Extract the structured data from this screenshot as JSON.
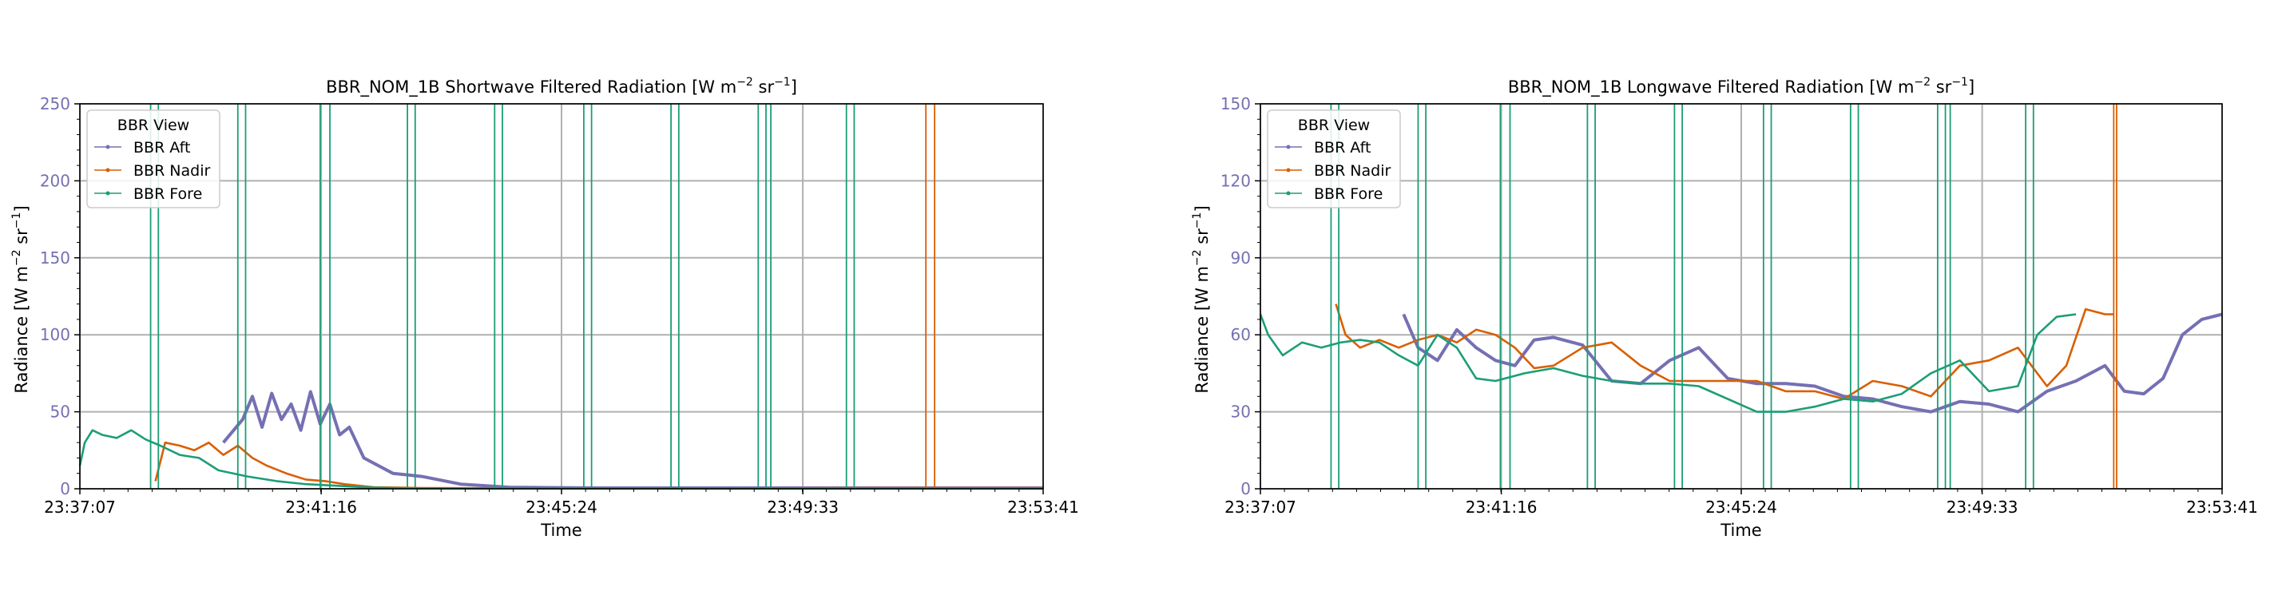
{
  "colors": {
    "aft": "#7570b3",
    "nadir": "#d95f02",
    "fore": "#1b9e77",
    "grid": "#b0b0b0",
    "ytick": "#7570b3"
  },
  "legend": {
    "title": "BBR View",
    "entries": [
      "BBR Aft",
      "BBR Nadir",
      "BBR Fore"
    ]
  },
  "chart_data": [
    {
      "type": "line",
      "title_main": "BBR_NOM_1B Shortwave Filtered Radiation [W m",
      "title_sup1": "−2",
      "title_mid": " sr",
      "title_sup2": "−1",
      "title_end": "]",
      "xlabel": "Time",
      "ylabel_main": "Radiance [W m",
      "ylabel_sup1": "−2",
      "ylabel_mid": " sr",
      "ylabel_sup2": "−1",
      "ylabel_end": "]",
      "x_range": [
        "23:37:07",
        "23:53:41"
      ],
      "x_ticks": [
        "23:37:07",
        "23:41:16",
        "23:45:24",
        "23:49:33",
        "23:53:41"
      ],
      "ylim": [
        0,
        250
      ],
      "y_ticks": [
        0,
        50,
        100,
        150,
        200,
        250
      ],
      "grid": true,
      "legend_position": "top-left",
      "series": [
        {
          "key": "aft",
          "name": "BBR Aft",
          "x": [
            "23:39:35",
            "23:39:55",
            "23:40:05",
            "23:40:15",
            "23:40:25",
            "23:40:35",
            "23:40:45",
            "23:40:55",
            "23:41:05",
            "23:41:15",
            "23:41:25",
            "23:41:35",
            "23:41:45",
            "23:42:00",
            "23:42:30",
            "23:43:00",
            "23:43:40",
            "23:44:30",
            "23:46:00",
            "23:48:00",
            "23:50:00",
            "23:52:00",
            "23:53:41"
          ],
          "y": [
            30,
            45,
            60,
            40,
            62,
            45,
            55,
            38,
            63,
            42,
            55,
            35,
            40,
            20,
            10,
            8,
            3,
            1,
            0.5,
            0.5,
            0.5,
            0.5,
            0.5
          ]
        },
        {
          "key": "nadir",
          "name": "BBR Nadir",
          "x": [
            "23:38:25",
            "23:38:35",
            "23:38:50",
            "23:39:05",
            "23:39:20",
            "23:39:35",
            "23:39:50",
            "23:40:05",
            "23:40:20",
            "23:40:40",
            "23:41:00",
            "23:41:20",
            "23:41:40",
            "23:42:10",
            "23:43:00",
            "23:45:00",
            "23:48:00",
            "23:51:00",
            "23:53:41"
          ],
          "y": [
            5,
            30,
            28,
            25,
            30,
            22,
            28,
            20,
            15,
            10,
            6,
            5,
            3,
            1,
            0.5,
            0.3,
            0.3,
            0.5,
            0.5
          ],
          "spikes": [
            "23:51:40",
            "23:51:49"
          ]
        },
        {
          "key": "fore",
          "name": "BBR Fore",
          "x": [
            "23:37:07",
            "23:37:12",
            "23:37:20",
            "23:37:30",
            "23:37:45",
            "23:38:00",
            "23:38:15",
            "23:38:30",
            "23:38:50",
            "23:39:10",
            "23:39:30",
            "23:40:00",
            "23:40:30",
            "23:41:00",
            "23:41:30",
            "23:42:00",
            "23:42:30",
            "23:43:00",
            "23:45:00",
            "23:48:00",
            "23:53:41"
          ],
          "y": [
            15,
            30,
            38,
            35,
            33,
            38,
            32,
            28,
            22,
            20,
            12,
            8,
            5,
            3,
            2,
            1,
            0.5,
            0.3,
            0.2,
            0.2,
            0.2
          ],
          "spikes": [
            "23:38:20",
            "23:38:28",
            "23:39:50",
            "23:39:58",
            "23:41:15",
            "23:41:25",
            "23:42:45",
            "23:42:53",
            "23:44:15",
            "23:44:23",
            "23:45:47",
            "23:45:55",
            "23:47:17",
            "23:47:25",
            "23:48:47",
            "23:48:55",
            "23:49:00",
            "23:50:18",
            "23:50:26"
          ]
        }
      ]
    },
    {
      "type": "line",
      "title_main": "BBR_NOM_1B Longwave Filtered Radiation [W m",
      "title_sup1": "−2",
      "title_mid": " sr",
      "title_sup2": "−1",
      "title_end": "]",
      "xlabel": "Time",
      "ylabel_main": "Radiance [W m",
      "ylabel_sup1": "−2",
      "ylabel_mid": " sr",
      "ylabel_sup2": "−1",
      "ylabel_end": "]",
      "x_range": [
        "23:37:07",
        "23:53:41"
      ],
      "x_ticks": [
        "23:37:07",
        "23:41:16",
        "23:45:24",
        "23:49:33",
        "23:53:41"
      ],
      "ylim": [
        0,
        150
      ],
      "y_ticks": [
        0,
        30,
        60,
        90,
        120,
        150
      ],
      "grid": true,
      "legend_position": "top-left",
      "series": [
        {
          "key": "aft",
          "name": "BBR Aft",
          "x": [
            "23:39:35",
            "23:39:50",
            "23:40:10",
            "23:40:30",
            "23:40:50",
            "23:41:10",
            "23:41:30",
            "23:41:50",
            "23:42:10",
            "23:42:40",
            "23:43:10",
            "23:43:40",
            "23:44:10",
            "23:44:40",
            "23:45:10",
            "23:45:40",
            "23:46:10",
            "23:46:40",
            "23:47:10",
            "23:47:40",
            "23:48:10",
            "23:48:40",
            "23:49:10",
            "23:49:40",
            "23:50:10",
            "23:50:40",
            "23:51:10",
            "23:51:40",
            "23:52:00",
            "23:52:20",
            "23:52:40",
            "23:53:00",
            "23:53:20",
            "23:53:41"
          ],
          "y": [
            68,
            55,
            50,
            62,
            55,
            50,
            48,
            58,
            59,
            56,
            42,
            41,
            50,
            55,
            43,
            41,
            41,
            40,
            36,
            35,
            32,
            30,
            34,
            33,
            30,
            38,
            42,
            48,
            38,
            37,
            43,
            60,
            66,
            68
          ]
        },
        {
          "key": "nadir",
          "name": "BBR Nadir",
          "x": [
            "23:38:25",
            "23:38:35",
            "23:38:50",
            "23:39:10",
            "23:39:30",
            "23:39:50",
            "23:40:10",
            "23:40:30",
            "23:40:50",
            "23:41:10",
            "23:41:30",
            "23:41:50",
            "23:42:10",
            "23:42:40",
            "23:43:10",
            "23:43:40",
            "23:44:10",
            "23:44:40",
            "23:45:10",
            "23:45:40",
            "23:46:10",
            "23:46:40",
            "23:47:10",
            "23:47:40",
            "23:48:10",
            "23:48:40",
            "23:49:10",
            "23:49:40",
            "23:50:10",
            "23:50:40",
            "23:51:00",
            "23:51:20",
            "23:51:40",
            "23:51:49"
          ],
          "y": [
            72,
            60,
            55,
            58,
            55,
            58,
            60,
            57,
            62,
            60,
            55,
            47,
            48,
            55,
            57,
            48,
            42,
            42,
            42,
            42,
            38,
            38,
            35,
            42,
            40,
            36,
            48,
            50,
            55,
            40,
            48,
            70,
            68,
            68
          ],
          "spikes": [
            "23:51:49",
            "23:51:52"
          ]
        },
        {
          "key": "fore",
          "name": "BBR Fore",
          "x": [
            "23:37:07",
            "23:37:15",
            "23:37:30",
            "23:37:50",
            "23:38:10",
            "23:38:30",
            "23:38:50",
            "23:39:10",
            "23:39:30",
            "23:39:50",
            "23:40:10",
            "23:40:30",
            "23:40:50",
            "23:41:10",
            "23:41:40",
            "23:42:10",
            "23:42:40",
            "23:43:10",
            "23:43:40",
            "23:44:10",
            "23:44:40",
            "23:45:10",
            "23:45:40",
            "23:46:10",
            "23:46:40",
            "23:47:10",
            "23:47:40",
            "23:48:10",
            "23:48:40",
            "23:49:10",
            "23:49:40",
            "23:50:10",
            "23:50:30",
            "23:50:50",
            "23:51:10"
          ],
          "y": [
            68,
            60,
            52,
            57,
            55,
            57,
            58,
            57,
            52,
            48,
            60,
            55,
            43,
            42,
            45,
            47,
            44,
            42,
            41,
            41,
            40,
            35,
            30,
            30,
            32,
            35,
            34,
            37,
            45,
            50,
            38,
            40,
            60,
            67,
            68
          ],
          "spikes": [
            "23:38:20",
            "23:38:28",
            "23:39:50",
            "23:39:58",
            "23:41:15",
            "23:41:25",
            "23:42:45",
            "23:42:53",
            "23:44:15",
            "23:44:23",
            "23:45:47",
            "23:45:55",
            "23:47:17",
            "23:47:25",
            "23:48:47",
            "23:48:55",
            "23:49:00",
            "23:50:18",
            "23:50:26"
          ]
        }
      ]
    }
  ]
}
